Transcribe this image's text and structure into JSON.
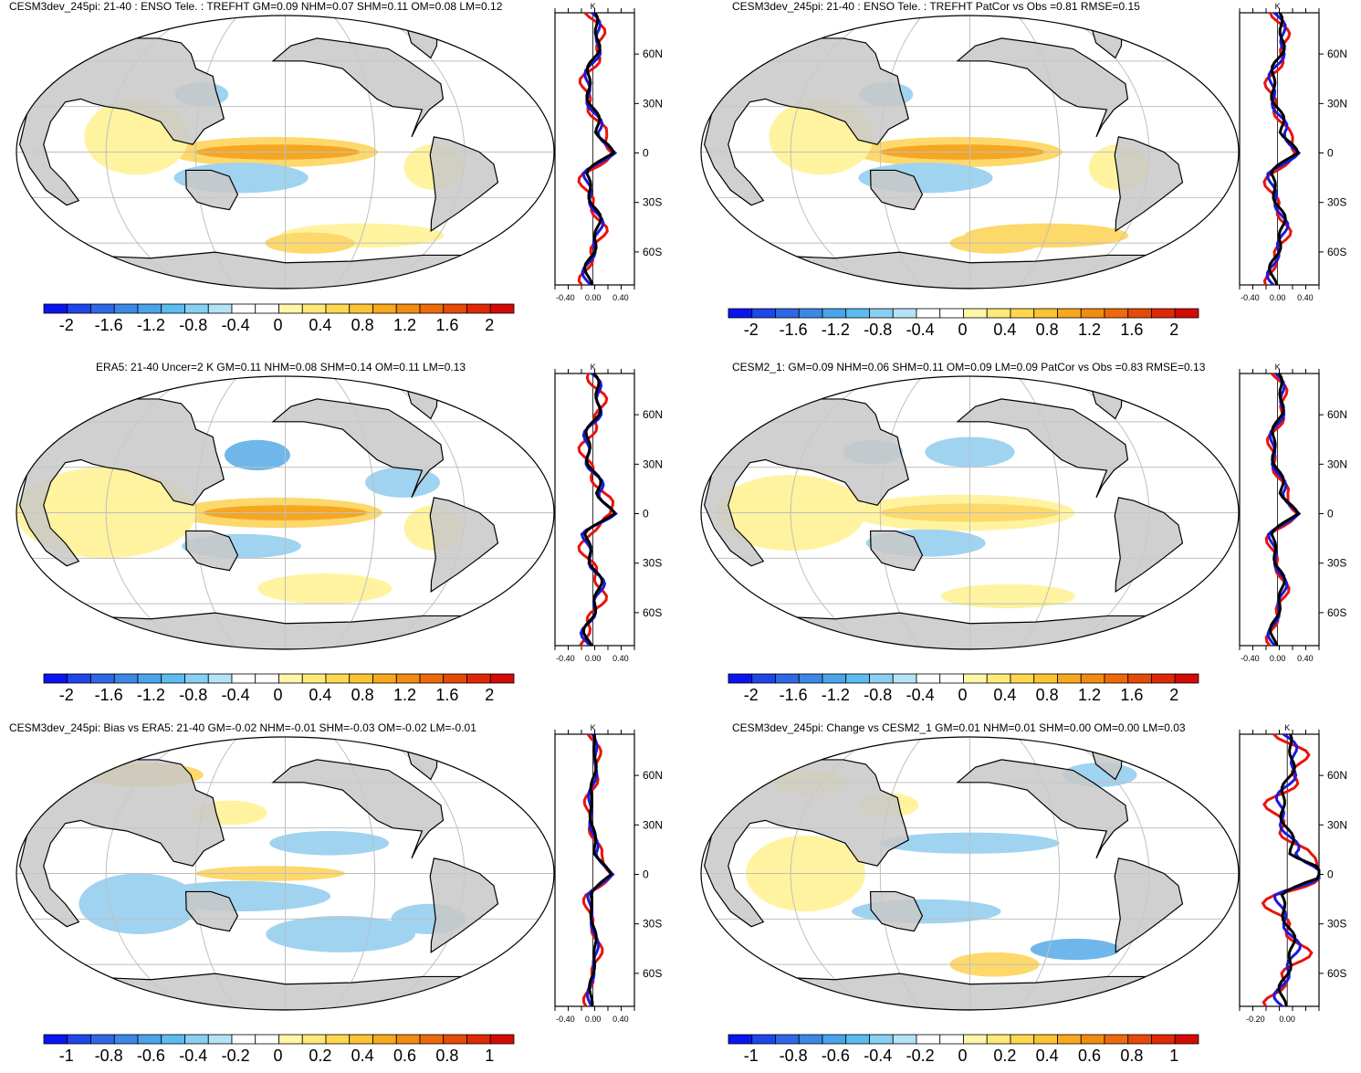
{
  "panels": [
    {
      "title": "CESM3dev_245pi: 21-40 : ENSO Tele. : TREFHT GM=0.09 NHM=0.07 SHM=0.11 OM=0.08 LM=0.12",
      "colorbar_labels": [
        "-2",
        "-1.6",
        "-1.2",
        "-0.8",
        "-0.4",
        "0",
        "0.4",
        "0.8",
        "1.2",
        "1.6",
        "2"
      ],
      "zonal_unit": "K",
      "zonal_lat_labels": [
        "60N",
        "30N",
        "0",
        "30S",
        "60S"
      ],
      "zonal_x_labels": [
        "-0.40",
        "0.00",
        "0.40"
      ]
    },
    {
      "title": "CESM3dev_245pi: 21-40 : ENSO Tele. : TREFHT PatCor vs Obs =0.81 RMSE=0.15",
      "colorbar_labels": [
        "-2",
        "-1.6",
        "-1.2",
        "-0.8",
        "-0.4",
        "0",
        "0.4",
        "0.8",
        "1.2",
        "1.6",
        "2"
      ],
      "zonal_unit": "K",
      "zonal_lat_labels": [
        "60N",
        "30N",
        "0",
        "30S",
        "60S"
      ],
      "zonal_x_labels": [
        "-0.40",
        "0.00",
        "0.40"
      ]
    },
    {
      "title": "ERA5: 21-40 Uncer=2 K GM=0.11 NHM=0.08 SHM=0.14 OM=0.11 LM=0.13",
      "colorbar_labels": [
        "-2",
        "-1.6",
        "-1.2",
        "-0.8",
        "-0.4",
        "0",
        "0.4",
        "0.8",
        "1.2",
        "1.6",
        "2"
      ],
      "zonal_unit": "K",
      "zonal_lat_labels": [
        "60N",
        "30N",
        "0",
        "30S",
        "60S"
      ],
      "zonal_x_labels": [
        "-0.40",
        "0.00",
        "0.40"
      ]
    },
    {
      "title": "CESM2_1: GM=0.09 NHM=0.06 SHM=0.11 OM=0.09 LM=0.09 PatCor vs Obs =0.83 RMSE=0.13",
      "colorbar_labels": [
        "-2",
        "-1.6",
        "-1.2",
        "-0.8",
        "-0.4",
        "0",
        "0.4",
        "0.8",
        "1.2",
        "1.6",
        "2"
      ],
      "zonal_unit": "K",
      "zonal_lat_labels": [
        "60N",
        "30N",
        "0",
        "30S",
        "60S"
      ],
      "zonal_x_labels": [
        "-0.40",
        "0.00",
        "0.40"
      ]
    },
    {
      "title": "CESM3dev_245pi: Bias vs ERA5: 21-40 GM=-0.02 NHM=-0.01 SHM=-0.03 OM=-0.02 LM=-0.01",
      "colorbar_labels": [
        "-1",
        "-0.8",
        "-0.6",
        "-0.4",
        "-0.2",
        "0",
        "0.2",
        "0.4",
        "0.6",
        "0.8",
        "1"
      ],
      "zonal_unit": "K",
      "zonal_lat_labels": [
        "60N",
        "30N",
        "0",
        "30S",
        "60S"
      ],
      "zonal_x_labels": [
        "-0.40",
        "0.00",
        "0.40"
      ]
    },
    {
      "title": "CESM3dev_245pi: Change vs CESM2_1 GM=0.01 NHM=0.01 SHM=0.00 OM=0.00 LM=0.03",
      "colorbar_labels": [
        "-1",
        "-0.8",
        "-0.6",
        "-0.4",
        "-0.2",
        "0",
        "0.2",
        "0.4",
        "0.6",
        "0.8",
        "1"
      ],
      "zonal_unit": "K",
      "zonal_lat_labels": [
        "60N",
        "30N",
        "0",
        "30S",
        "60S"
      ],
      "zonal_x_labels": [
        "-0.20",
        "0.00"
      ]
    }
  ],
  "colors": {
    "land": "#c8c8c8",
    "warm_light": "#fff3a0",
    "warm_mid": "#fdd86a",
    "warm_strong": "#f5a623",
    "cool_light": "#9fd3f0",
    "cool_mid": "#6fb7ea",
    "series_model": "#000000",
    "series_blue": "#1a1adb",
    "series_red": "#e8140c"
  },
  "colorbar_colors": [
    "#0a14f0",
    "#1e46ea",
    "#2f68e6",
    "#3d88e6",
    "#4aa4ea",
    "#5cbcf0",
    "#88cff2",
    "#b4e2f6",
    "#ffffff",
    "#ffffff",
    "#fff6a8",
    "#ffe97a",
    "#ffd84f",
    "#fcc432",
    "#f7a81e",
    "#f28b12",
    "#ec6a0c",
    "#e64a08",
    "#e02806",
    "#d40a05"
  ]
}
